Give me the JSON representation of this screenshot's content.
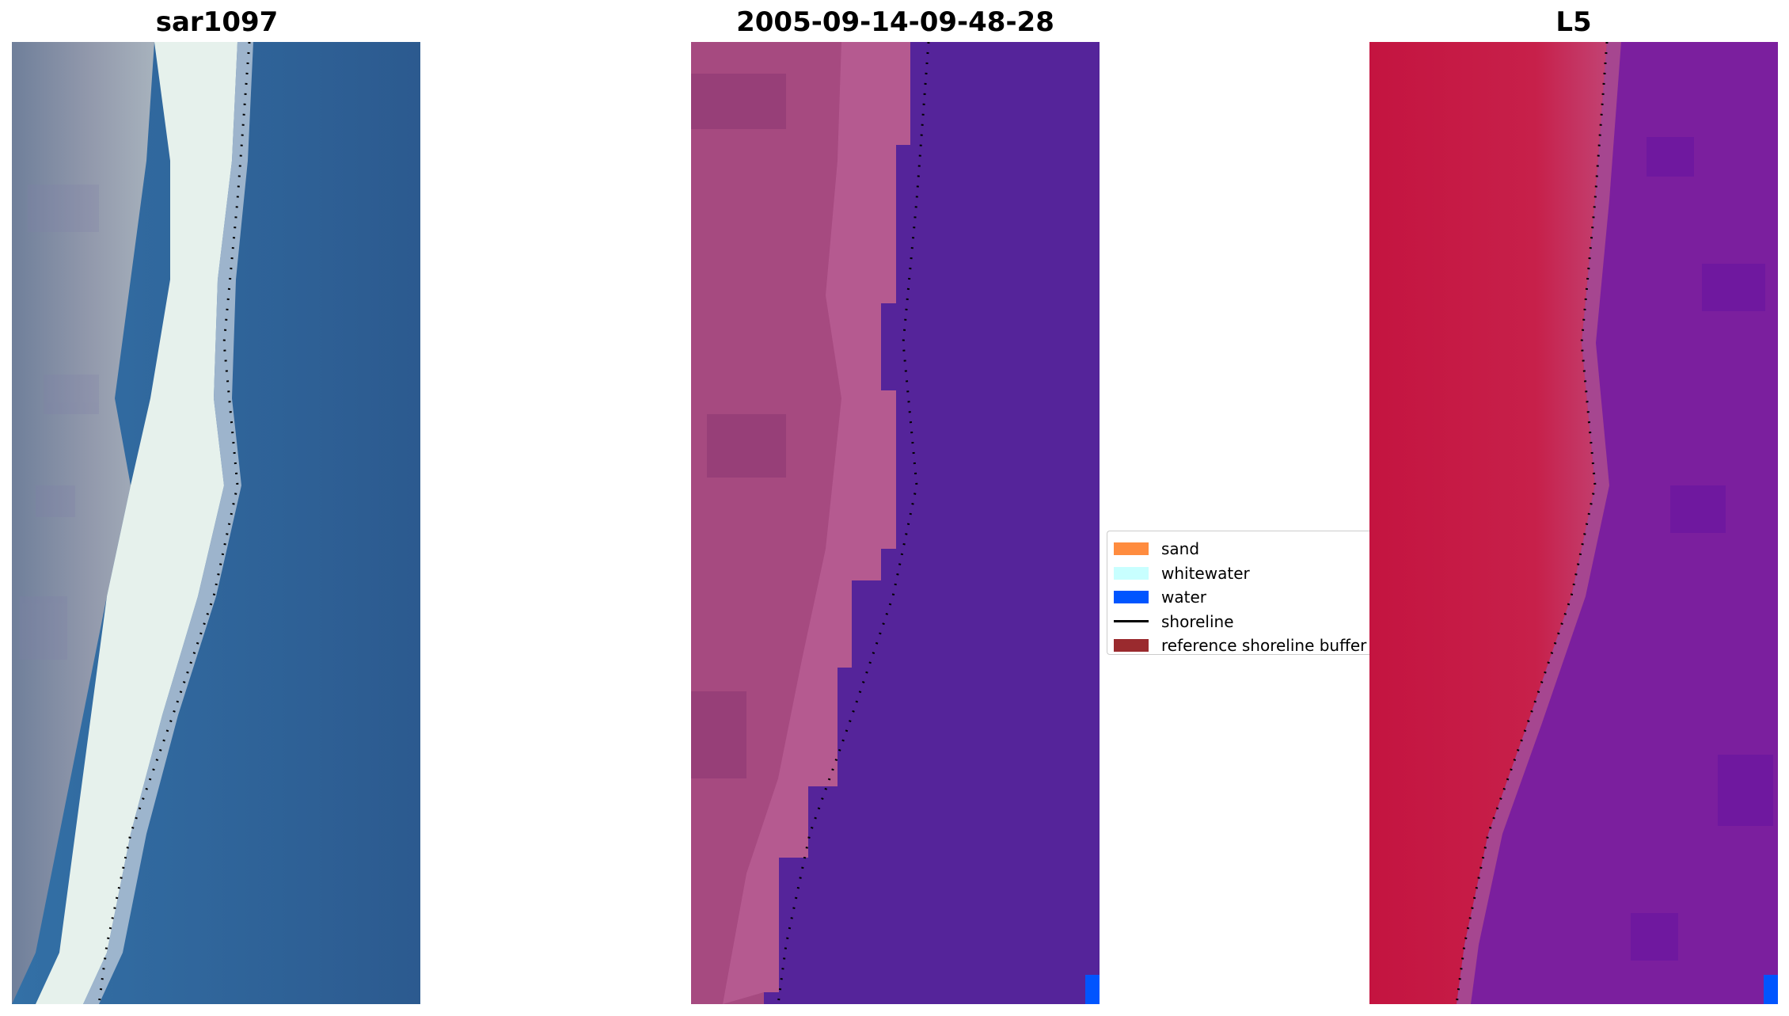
{
  "panels": [
    {
      "title": "sar1097"
    },
    {
      "title": "2005-09-14-09-48-28"
    },
    {
      "title": "L5"
    }
  ],
  "legend": {
    "items": [
      {
        "label": "sand",
        "kind": "patch",
        "color": "#ff8c3f"
      },
      {
        "label": "whitewater",
        "kind": "patch",
        "color": "#c8ffff"
      },
      {
        "label": "water",
        "kind": "patch",
        "color": "#0055ff"
      },
      {
        "label": "shoreline",
        "kind": "line",
        "color": "#000000"
      },
      {
        "label": "reference shoreline buffer",
        "kind": "patch",
        "color": "#9a2a2e"
      }
    ]
  },
  "colors": {
    "rgb_water": "#2e5f95",
    "rgb_beach_white": "#e8f2ee",
    "rgb_land": "#8a8fa5",
    "class_land": "#b04f86",
    "class_water": "#55249a",
    "class_water_pixel": "#0055ff",
    "mndwi_land": "#c2123f",
    "mndwi_water": "#7b1f9e",
    "shoreline": "#000000"
  }
}
